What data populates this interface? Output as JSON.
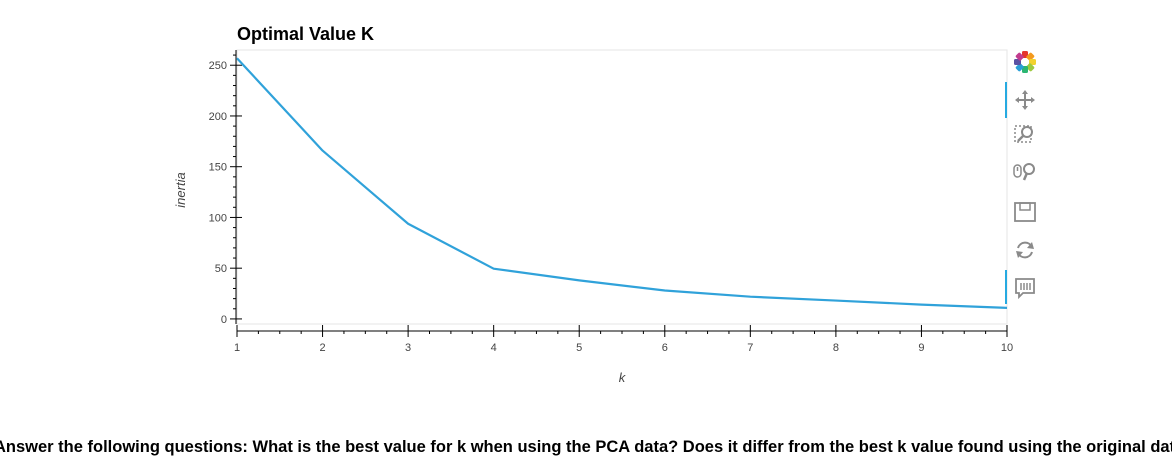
{
  "chart_data": {
    "type": "line",
    "title": "Optimal Value K",
    "xlabel": "k",
    "ylabel": "inertia",
    "x": [
      1,
      2,
      3,
      4,
      5,
      6,
      7,
      8,
      9,
      10
    ],
    "series": [
      {
        "values": [
          256.9,
          165.9,
          93.8,
          49.5,
          38.0,
          28.0,
          21.9,
          18.1,
          14.1,
          10.9
        ],
        "color": "#30a2da"
      }
    ],
    "xlim": [
      1,
      10
    ],
    "ylim": [
      -5,
      265
    ],
    "xticks": [
      "1",
      "2",
      "3",
      "4",
      "5",
      "6",
      "7",
      "8",
      "9",
      "10"
    ],
    "yticks": [
      "0",
      "50",
      "100",
      "150",
      "200",
      "250"
    ],
    "grid": false
  },
  "toolbar": {
    "tools": [
      "bokeh-logo-icon",
      "pan-icon",
      "box-zoom-icon",
      "wheel-zoom-icon",
      "save-icon",
      "reset-icon",
      "hover-icon"
    ]
  },
  "question": "Answer the following questions: What is the best value for k when using the PCA data? Does it differ from the best k value found using the original data?"
}
